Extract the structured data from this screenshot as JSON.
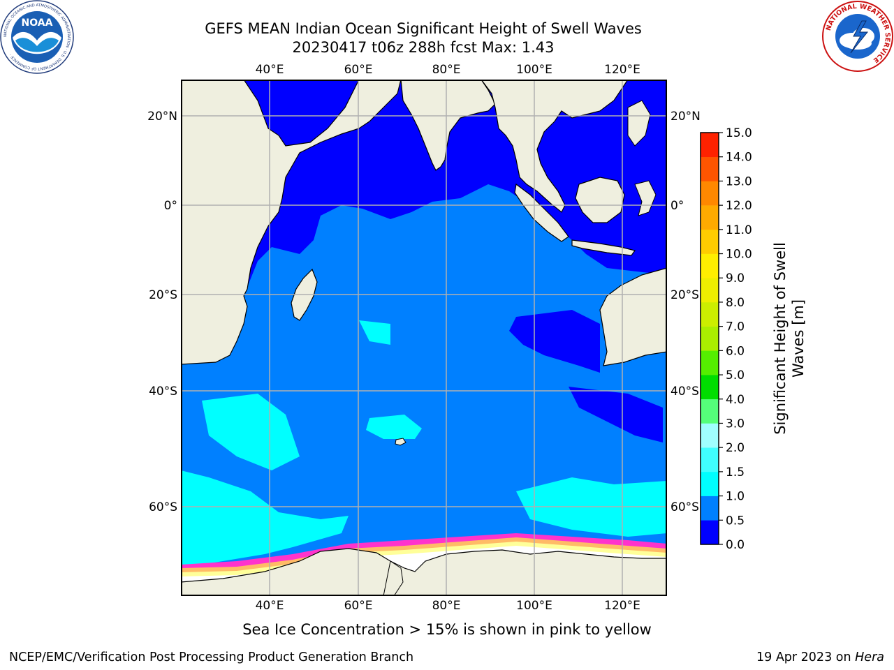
{
  "title": {
    "line1": "GEFS MEAN Indian Ocean Significant Height of Swell Waves",
    "line2": "20230417 t06z 288h fcst   Max: 1.43"
  },
  "axes": {
    "lon_ticks": [
      "40°E",
      "60°E",
      "80°E",
      "100°E",
      "120°E"
    ],
    "lat_ticks": [
      "20°N",
      "0°",
      "20°S",
      "40°S",
      "60°S"
    ]
  },
  "colorbar": {
    "label_line1": "Significant Height of Swell",
    "label_line2": "Waves [m]",
    "levels": [
      "0.0",
      "0.5",
      "1.0",
      "1.5",
      "2.0",
      "3.0",
      "4.0",
      "5.0",
      "6.0",
      "7.0",
      "8.0",
      "9.0",
      "10.0",
      "11.0",
      "12.0",
      "13.0",
      "14.0",
      "15.0"
    ],
    "colors": [
      "#0000ff",
      "#0080ff",
      "#00ffff",
      "#40ffff",
      "#a0ffff",
      "#55ff7a",
      "#00dd00",
      "#55ee00",
      "#aaee00",
      "#ccee00",
      "#eeee00",
      "#ffee00",
      "#ffcc00",
      "#ffaa00",
      "#ff8800",
      "#ff5500",
      "#ff2200"
    ]
  },
  "caption": "Sea Ice Concentration > 15% is shown in pink to yellow",
  "footer": {
    "left": "NCEP/EMC/Verification Post Processing Product Generation Branch",
    "right_date": "19 Apr 2023 on ",
    "right_host": "Hera"
  },
  "logos": {
    "noaa_text": "NOAA",
    "noaa_ring": "NATIONAL OCEANIC AND ATMOSPHERIC ADMINISTRATION · U.S. DEPARTMENT OF COMMERCE ·",
    "nws_ring": "NATIONAL WEATHER SERVICE"
  },
  "map_colors": {
    "land": "#efefdf",
    "swell_low": "#0000ff",
    "swell_mid": "#0080ff",
    "swell_high": "#00ffff",
    "ice_edge": "#ff33cc",
    "ice_mid": "#ffbb66",
    "ice_core": "#ffff99",
    "grid": "#b0b0b0"
  }
}
